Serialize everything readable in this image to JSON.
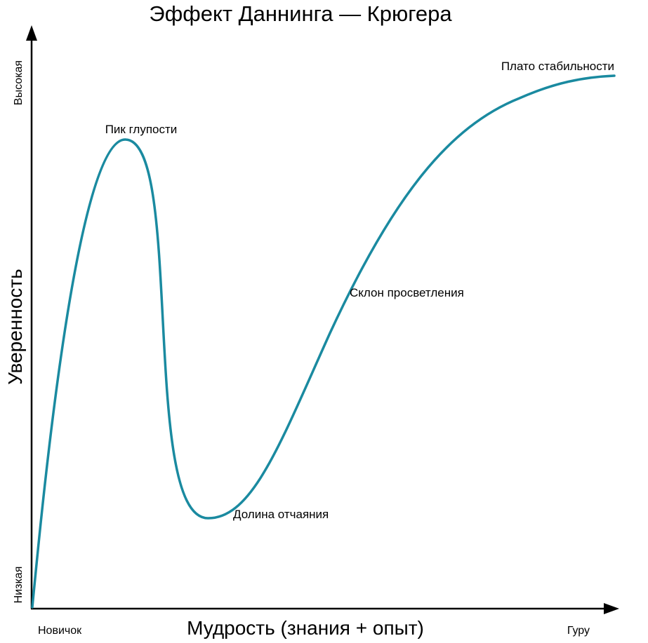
{
  "title": "Эффект Даннинга — Крюгера",
  "x_axis": {
    "label": "Мудрость (знания + опыт)",
    "start_label": "Новичок",
    "end_label": "Гуру"
  },
  "y_axis": {
    "label": "Уверенность",
    "low_label": "Низкая",
    "high_label": "Высокая"
  },
  "annotations": {
    "peak": "Пик глупости",
    "valley": "Долина отчаяния",
    "slope": "Склон просветления",
    "plateau": "Плато стабильности"
  },
  "colors": {
    "curve": "#1a8aa0",
    "axes": "#000000"
  }
}
